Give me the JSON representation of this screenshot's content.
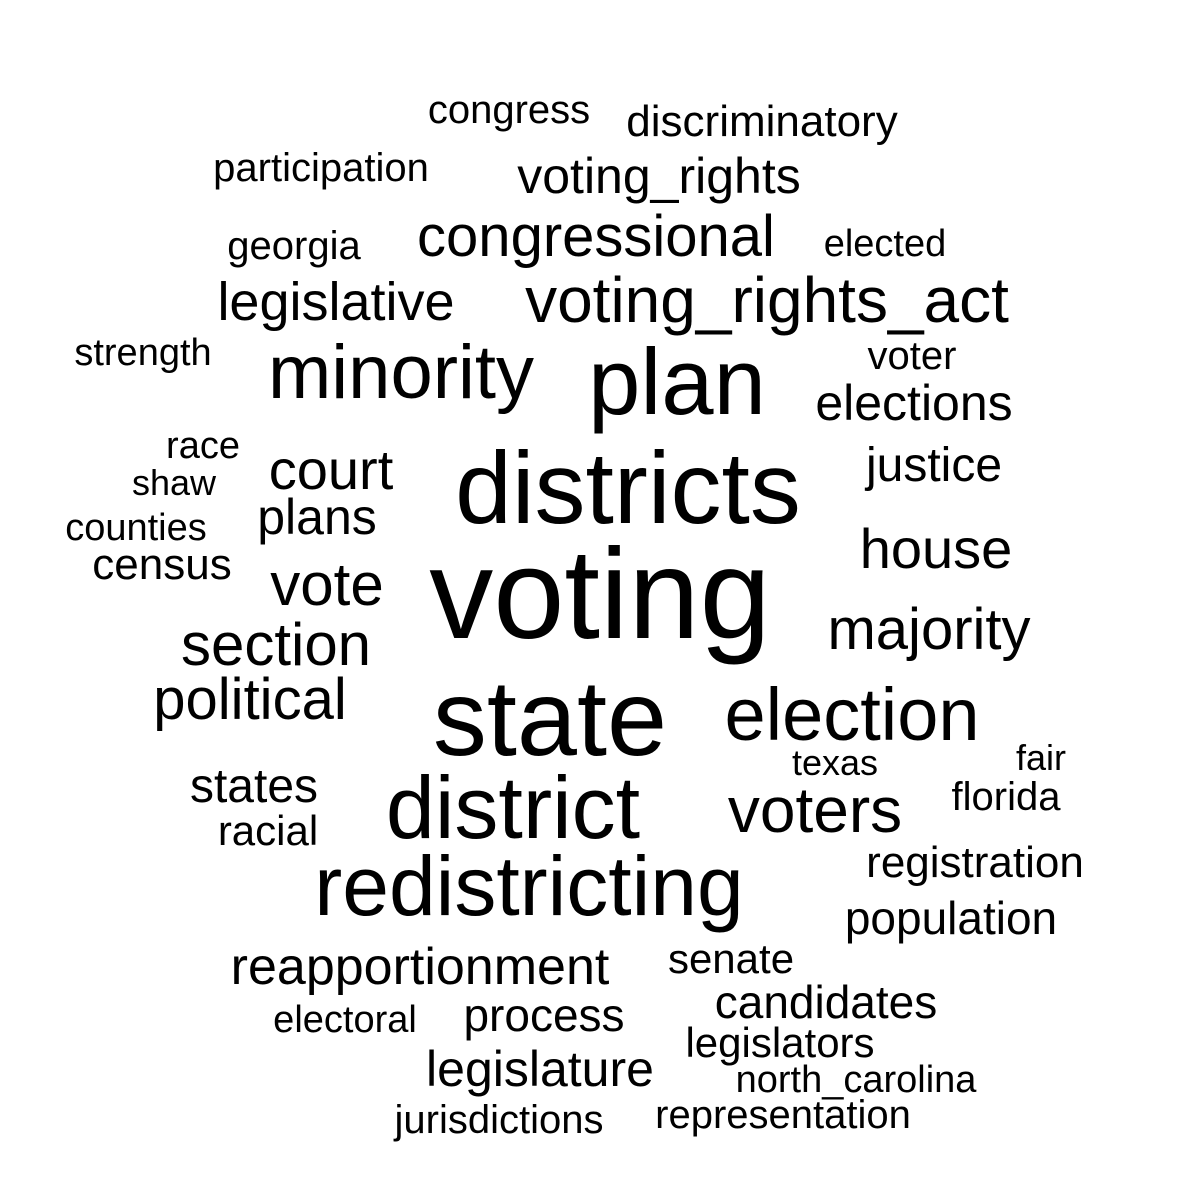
{
  "colors": {
    "text": "#000000",
    "background": "#ffffff"
  },
  "words": [
    {
      "text": "voting"
    },
    {
      "text": "state"
    },
    {
      "text": "districts"
    },
    {
      "text": "plan"
    },
    {
      "text": "district"
    },
    {
      "text": "redistricting"
    },
    {
      "text": "minority"
    },
    {
      "text": "voting_rights_act"
    },
    {
      "text": "election"
    },
    {
      "text": "congressional"
    },
    {
      "text": "voters"
    },
    {
      "text": "majority"
    },
    {
      "text": "vote"
    },
    {
      "text": "section"
    },
    {
      "text": "court"
    },
    {
      "text": "legislative"
    },
    {
      "text": "political"
    },
    {
      "text": "reapportionment"
    },
    {
      "text": "voting_rights"
    },
    {
      "text": "house"
    },
    {
      "text": "elections"
    },
    {
      "text": "legislature"
    },
    {
      "text": "justice"
    },
    {
      "text": "plans"
    },
    {
      "text": "states"
    },
    {
      "text": "population"
    },
    {
      "text": "registration"
    },
    {
      "text": "candidates"
    },
    {
      "text": "process"
    },
    {
      "text": "census"
    },
    {
      "text": "racial"
    },
    {
      "text": "discriminatory"
    },
    {
      "text": "participation"
    },
    {
      "text": "congress"
    },
    {
      "text": "legislators"
    },
    {
      "text": "senate"
    },
    {
      "text": "jurisdictions"
    },
    {
      "text": "representation"
    },
    {
      "text": "north_carolina"
    },
    {
      "text": "counties"
    },
    {
      "text": "georgia"
    },
    {
      "text": "elected"
    },
    {
      "text": "voter"
    },
    {
      "text": "strength"
    },
    {
      "text": "electoral"
    },
    {
      "text": "florida"
    },
    {
      "text": "race"
    },
    {
      "text": "shaw"
    },
    {
      "text": "texas"
    },
    {
      "text": "fair"
    }
  ]
}
